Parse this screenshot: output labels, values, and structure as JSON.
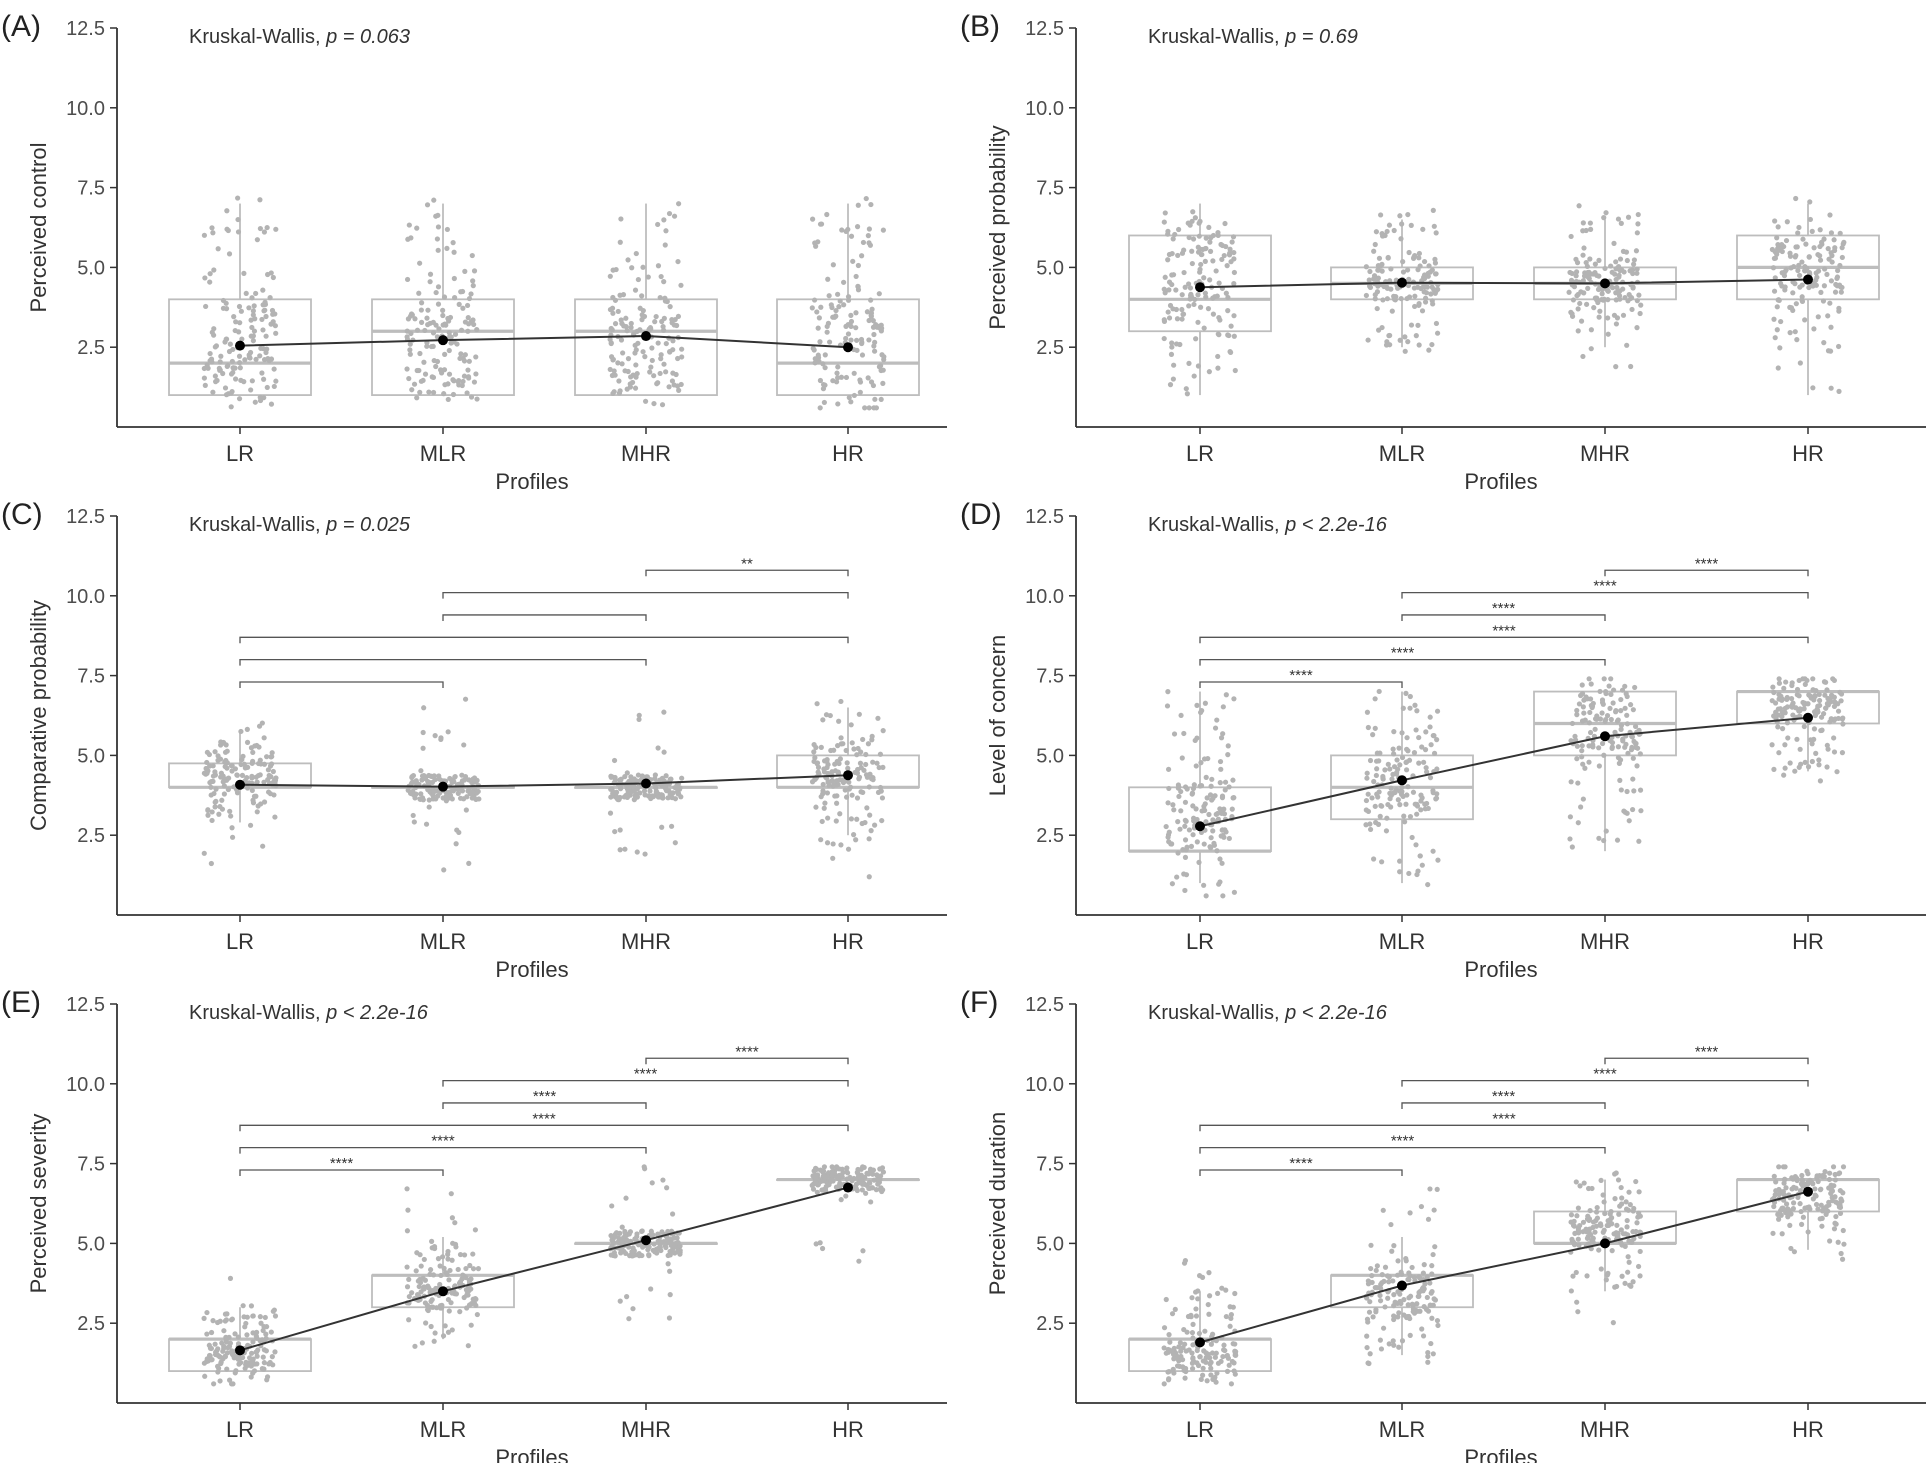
{
  "figure": {
    "x_axis_title": "Profiles",
    "point_color": "#b3b3b3",
    "box_color": "#bdbdbd",
    "mean_color": "#000000"
  },
  "chart_data": [
    {
      "type": "box",
      "panel": "(A)",
      "ylabel": "Perceived control",
      "xlabel": "Profiles",
      "categories": [
        "LR",
        "MLR",
        "MHR",
        "HR"
      ],
      "ylim": [
        0,
        12.5
      ],
      "yticks": [
        "2.5",
        "5.0",
        "7.5",
        "10.0",
        "12.5"
      ],
      "test_label": "Kruskal-Wallis, ",
      "test_p": "p = 0.063",
      "boxes": [
        {
          "q1": 1,
          "median": 2,
          "q3": 4,
          "whisker_low": 1,
          "whisker_high": 7
        },
        {
          "q1": 1,
          "median": 3,
          "q3": 4,
          "whisker_low": 1,
          "whisker_high": 7
        },
        {
          "q1": 1,
          "median": 3,
          "q3": 4,
          "whisker_low": 1,
          "whisker_high": 7
        },
        {
          "q1": 1,
          "median": 2,
          "q3": 4,
          "whisker_low": 1,
          "whisker_high": 7
        }
      ],
      "means": [
        2.55,
        2.72,
        2.85,
        2.5
      ],
      "comparisons": []
    },
    {
      "type": "box",
      "panel": "(B)",
      "ylabel": "Perceived probability",
      "xlabel": "Profiles",
      "categories": [
        "LR",
        "MLR",
        "MHR",
        "HR"
      ],
      "ylim": [
        0,
        12.5
      ],
      "yticks": [
        "2.5",
        "5.0",
        "7.5",
        "10.0",
        "12.5"
      ],
      "test_label": "Kruskal-Wallis, ",
      "test_p": "p = 0.69",
      "boxes": [
        {
          "q1": 3,
          "median": 4,
          "q3": 6,
          "whisker_low": 1,
          "whisker_high": 7
        },
        {
          "q1": 4,
          "median": 4.5,
          "q3": 5,
          "whisker_low": 2.5,
          "whisker_high": 6.5
        },
        {
          "q1": 4,
          "median": 4.5,
          "q3": 5,
          "whisker_low": 2.5,
          "whisker_high": 6.5
        },
        {
          "q1": 4,
          "median": 5,
          "q3": 6,
          "whisker_low": 1,
          "whisker_high": 7
        }
      ],
      "means": [
        4.38,
        4.52,
        4.5,
        4.62
      ],
      "comparisons": []
    },
    {
      "type": "box",
      "panel": "(C)",
      "ylabel": "Comparative probability",
      "xlabel": "Profiles",
      "categories": [
        "LR",
        "MLR",
        "MHR",
        "HR"
      ],
      "ylim": [
        0,
        12.5
      ],
      "yticks": [
        "2.5",
        "5.0",
        "7.5",
        "10.0",
        "12.5"
      ],
      "test_label": "Kruskal-Wallis, ",
      "test_p": "p = 0.025",
      "boxes": [
        {
          "q1": 4,
          "median": 4,
          "q3": 4.75,
          "whisker_low": 2.9,
          "whisker_high": 5.8
        },
        {
          "q1": 4,
          "median": 4,
          "q3": 4,
          "whisker_low": 4,
          "whisker_high": 4
        },
        {
          "q1": 4,
          "median": 4,
          "q3": 4,
          "whisker_low": 4,
          "whisker_high": 4
        },
        {
          "q1": 4,
          "median": 4,
          "q3": 5,
          "whisker_low": 2.5,
          "whisker_high": 6.5
        }
      ],
      "means": [
        4.08,
        4.02,
        4.12,
        4.38
      ],
      "comparisons": [
        {
          "from": 0,
          "to": 1,
          "y": 7.3,
          "label": ""
        },
        {
          "from": 0,
          "to": 2,
          "y": 8.0,
          "label": ""
        },
        {
          "from": 0,
          "to": 3,
          "y": 8.7,
          "label": ""
        },
        {
          "from": 1,
          "to": 2,
          "y": 9.4,
          "label": ""
        },
        {
          "from": 1,
          "to": 3,
          "y": 10.1,
          "label": ""
        },
        {
          "from": 2,
          "to": 3,
          "y": 10.8,
          "label": "**"
        }
      ]
    },
    {
      "type": "box",
      "panel": "(D)",
      "ylabel": "Level of concern",
      "xlabel": "Profiles",
      "categories": [
        "LR",
        "MLR",
        "MHR",
        "HR"
      ],
      "ylim": [
        0,
        12.5
      ],
      "yticks": [
        "2.5",
        "5.0",
        "7.5",
        "10.0",
        "12.5"
      ],
      "test_label": "Kruskal-Wallis, ",
      "test_p": "p < 2.2e-16",
      "boxes": [
        {
          "q1": 2,
          "median": 2,
          "q3": 4,
          "whisker_low": 1,
          "whisker_high": 7
        },
        {
          "q1": 3,
          "median": 4,
          "q3": 5,
          "whisker_low": 1,
          "whisker_high": 7
        },
        {
          "q1": 5,
          "median": 6,
          "q3": 7,
          "whisker_low": 2,
          "whisker_high": 7
        },
        {
          "q1": 6,
          "median": 7,
          "q3": 7,
          "whisker_low": 4.5,
          "whisker_high": 7
        }
      ],
      "means": [
        2.78,
        4.22,
        5.6,
        6.18
      ],
      "comparisons": [
        {
          "from": 0,
          "to": 1,
          "y": 7.3,
          "label": "****"
        },
        {
          "from": 0,
          "to": 2,
          "y": 8.0,
          "label": "****"
        },
        {
          "from": 0,
          "to": 3,
          "y": 8.7,
          "label": "****"
        },
        {
          "from": 1,
          "to": 2,
          "y": 9.4,
          "label": "****"
        },
        {
          "from": 1,
          "to": 3,
          "y": 10.1,
          "label": "****"
        },
        {
          "from": 2,
          "to": 3,
          "y": 10.8,
          "label": "****"
        }
      ]
    },
    {
      "type": "box",
      "panel": "(E)",
      "ylabel": "Perceived severity",
      "xlabel": "Profiles",
      "categories": [
        "LR",
        "MLR",
        "MHR",
        "HR"
      ],
      "ylim": [
        0,
        12.5
      ],
      "yticks": [
        "2.5",
        "5.0",
        "7.5",
        "10.0",
        "12.5"
      ],
      "test_label": "Kruskal-Wallis, ",
      "test_p": "p < 2.2e-16",
      "boxes": [
        {
          "q1": 1,
          "median": 2,
          "q3": 2,
          "whisker_low": 1,
          "whisker_high": 3
        },
        {
          "q1": 3,
          "median": 4,
          "q3": 4,
          "whisker_low": 2,
          "whisker_high": 5.2
        },
        {
          "q1": 5,
          "median": 5,
          "q3": 5,
          "whisker_low": 5,
          "whisker_high": 5
        },
        {
          "q1": 7,
          "median": 7,
          "q3": 7,
          "whisker_low": 7,
          "whisker_high": 7
        }
      ],
      "means": [
        1.65,
        3.5,
        5.1,
        6.75
      ],
      "comparisons": [
        {
          "from": 0,
          "to": 1,
          "y": 7.3,
          "label": "****"
        },
        {
          "from": 0,
          "to": 2,
          "y": 8.0,
          "label": "****"
        },
        {
          "from": 0,
          "to": 3,
          "y": 8.7,
          "label": "****"
        },
        {
          "from": 1,
          "to": 2,
          "y": 9.4,
          "label": "****"
        },
        {
          "from": 1,
          "to": 3,
          "y": 10.1,
          "label": "****"
        },
        {
          "from": 2,
          "to": 3,
          "y": 10.8,
          "label": "****"
        }
      ]
    },
    {
      "type": "box",
      "panel": "(F)",
      "ylabel": "Perceived duration",
      "xlabel": "Profiles",
      "categories": [
        "LR",
        "MLR",
        "MHR",
        "HR"
      ],
      "ylim": [
        0,
        12.5
      ],
      "yticks": [
        "2.5",
        "5.0",
        "7.5",
        "10.0",
        "12.5"
      ],
      "test_label": "Kruskal-Wallis, ",
      "test_p": "p < 2.2e-16",
      "boxes": [
        {
          "q1": 1,
          "median": 2,
          "q3": 2,
          "whisker_low": 1,
          "whisker_high": 3.5
        },
        {
          "q1": 3,
          "median": 4,
          "q3": 4,
          "whisker_low": 1.5,
          "whisker_high": 5.2
        },
        {
          "q1": 5,
          "median": 5,
          "q3": 6,
          "whisker_low": 3.5,
          "whisker_high": 7
        },
        {
          "q1": 6,
          "median": 7,
          "q3": 7,
          "whisker_low": 4.8,
          "whisker_high": 7
        }
      ],
      "means": [
        1.9,
        3.68,
        5.0,
        6.62
      ],
      "comparisons": [
        {
          "from": 0,
          "to": 1,
          "y": 7.3,
          "label": "****"
        },
        {
          "from": 0,
          "to": 2,
          "y": 8.0,
          "label": "****"
        },
        {
          "from": 0,
          "to": 3,
          "y": 8.7,
          "label": "****"
        },
        {
          "from": 1,
          "to": 2,
          "y": 9.4,
          "label": "****"
        },
        {
          "from": 1,
          "to": 3,
          "y": 10.1,
          "label": "****"
        },
        {
          "from": 2,
          "to": 3,
          "y": 10.8,
          "label": "****"
        }
      ]
    }
  ]
}
